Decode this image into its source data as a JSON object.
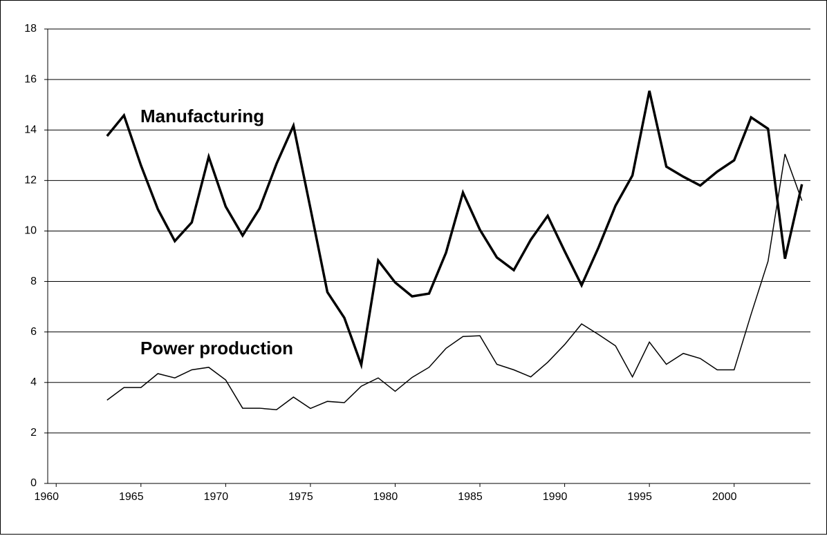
{
  "chart_data": {
    "type": "line",
    "x": [
      1963,
      1964,
      1965,
      1966,
      1967,
      1968,
      1969,
      1970,
      1971,
      1972,
      1973,
      1974,
      1975,
      1976,
      1977,
      1978,
      1979,
      1980,
      1981,
      1982,
      1983,
      1984,
      1985,
      1986,
      1987,
      1988,
      1989,
      1990,
      1991,
      1992,
      1993,
      1994,
      1995,
      1996,
      1997,
      1998,
      1999,
      2000,
      2001,
      2002,
      2003,
      2004
    ],
    "series": [
      {
        "name": "Manufacturing",
        "color": "#000000",
        "width": 3.5,
        "values": [
          13.76,
          14.58,
          12.6,
          10.86,
          9.6,
          10.34,
          12.94,
          10.97,
          9.82,
          10.89,
          12.66,
          14.17,
          10.9,
          7.58,
          6.56,
          4.7,
          8.83,
          7.96,
          7.41,
          7.52,
          9.14,
          11.52,
          10.05,
          8.95,
          8.45,
          9.65,
          10.6,
          9.2,
          7.85,
          9.35,
          11.0,
          12.2,
          15.55,
          12.55,
          12.15,
          11.8,
          12.35,
          12.8,
          14.5,
          14.05,
          8.9,
          11.85
        ]
      },
      {
        "name": "Power production",
        "color": "#000000",
        "width": 1.5,
        "values": [
          3.3,
          3.8,
          3.8,
          4.35,
          4.18,
          4.5,
          4.6,
          4.1,
          2.98,
          2.98,
          2.92,
          3.42,
          2.97,
          3.25,
          3.2,
          3.85,
          4.18,
          3.65,
          4.2,
          4.6,
          5.35,
          5.82,
          5.85,
          4.72,
          4.5,
          4.22,
          4.8,
          5.5,
          6.32,
          5.9,
          5.45,
          4.22,
          5.6,
          4.72,
          5.15,
          4.95,
          4.5,
          4.5,
          6.7,
          8.8,
          13.05,
          11.2
        ]
      }
    ],
    "xlim": [
      1959.5,
      2004.5
    ],
    "xticks": [
      1960,
      1965,
      1970,
      1975,
      1980,
      1985,
      1990,
      1995,
      2000
    ],
    "ylim": [
      0,
      18
    ],
    "yticks": [
      0,
      2,
      4,
      6,
      8,
      10,
      12,
      14,
      16,
      18
    ],
    "grid": true
  }
}
